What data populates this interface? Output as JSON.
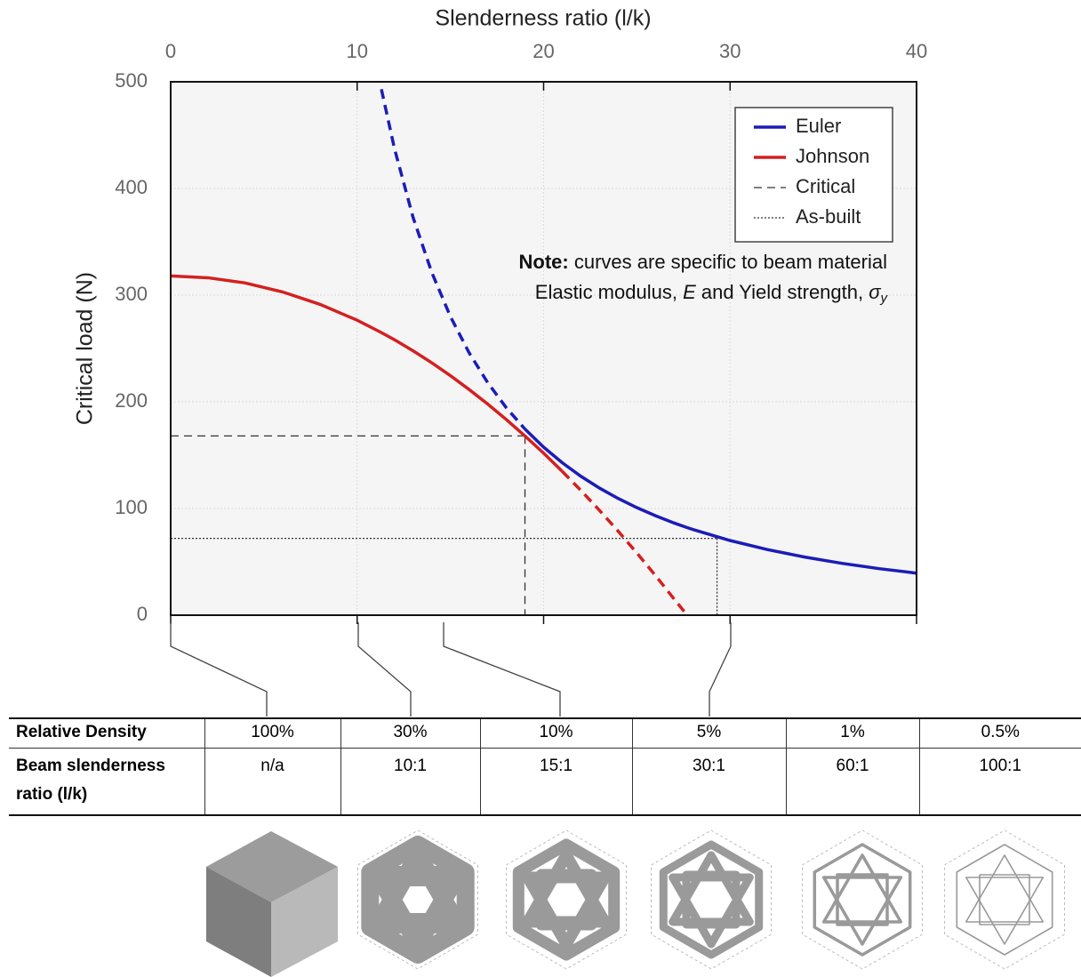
{
  "chart_data": {
    "type": "line",
    "x_label": "Slenderness ratio (l/k)",
    "y_label": "Critical load (N)",
    "x": [
      0,
      2,
      4,
      6,
      8,
      10,
      11.3,
      12,
      13,
      14,
      15,
      16,
      17,
      18,
      19,
      20,
      21,
      22,
      23,
      24,
      25,
      26,
      27,
      27.7,
      28,
      30,
      32,
      34,
      36,
      38,
      40
    ],
    "series": [
      {
        "name": "Euler",
        "color": "#1c1cb8",
        "dashed": false,
        "values": [
          null,
          null,
          null,
          null,
          null,
          null,
          null,
          null,
          null,
          null,
          null,
          null,
          null,
          null,
          174.5,
          157.5,
          142.9,
          130.2,
          119.1,
          109.4,
          100.8,
          93.2,
          86.4,
          82.1,
          80.4,
          70,
          61.5,
          54.5,
          48.6,
          43.6,
          39.4
        ]
      },
      {
        "color": "#1c1cb8",
        "dashed": true,
        "values": [
          null,
          null,
          null,
          null,
          null,
          null,
          493,
          437.5,
          372.8,
          321.4,
          280,
          246.1,
          218,
          194.4,
          174.5,
          null,
          null,
          null,
          null,
          null,
          null,
          null,
          null,
          null,
          null,
          null,
          null,
          null,
          null,
          null,
          null
        ]
      },
      {
        "name": "Johnson",
        "color": "#d42020",
        "dashed": false,
        "values": [
          318,
          316.3,
          311.4,
          303,
          291.4,
          276.5,
          264.9,
          258.2,
          247.8,
          236.6,
          224.5,
          211.6,
          197.9,
          183.4,
          168,
          151.9,
          134.8,
          null,
          null,
          null,
          null,
          null,
          null,
          null,
          null,
          null,
          null,
          null,
          null,
          null,
          null
        ]
      },
      {
        "color": "#d42020",
        "dashed": true,
        "values": [
          null,
          null,
          null,
          null,
          null,
          null,
          null,
          null,
          null,
          null,
          null,
          null,
          null,
          null,
          null,
          null,
          134.8,
          116.9,
          98.2,
          78.7,
          58.3,
          37.1,
          15.1,
          0,
          null,
          null,
          null,
          null,
          null,
          null,
          null
        ]
      }
    ],
    "critical": {
      "x": 19,
      "y": 168
    },
    "as_built": {
      "x": 29.3,
      "y": 72
    },
    "xlim": [
      0,
      40
    ],
    "xticks": [
      0,
      10,
      20,
      30,
      40
    ],
    "ylim": [
      0,
      500
    ],
    "yticks": [
      0,
      100,
      200,
      300,
      400,
      500
    ],
    "grid": true,
    "legend": [
      {
        "label": "Euler",
        "color": "#1c1cb8",
        "style": "solid"
      },
      {
        "label": "Johnson",
        "color": "#d42020",
        "style": "solid"
      },
      {
        "label": "Critical",
        "color": "#333333",
        "style": "dashed"
      },
      {
        "label": "As-built",
        "color": "#333333",
        "style": "dotted"
      }
    ],
    "note": {
      "label": "Note:",
      "line1": "curves are specific to beam material",
      "line2_a": "Elastic modulus, ",
      "line2_b": "E",
      "line2_c": "  and Yield strength, ",
      "line2_d": "σ",
      "line2_e": "y"
    }
  },
  "table": {
    "rows": [
      [
        "Relative Density",
        "100%",
        "30%",
        "10%",
        "5%",
        "1%",
        "0.5%"
      ],
      [
        "Beam slenderness ratio (l/k)",
        "n/a",
        "10:1",
        "15:1",
        "30:1",
        "60:1",
        "100:1"
      ]
    ]
  }
}
